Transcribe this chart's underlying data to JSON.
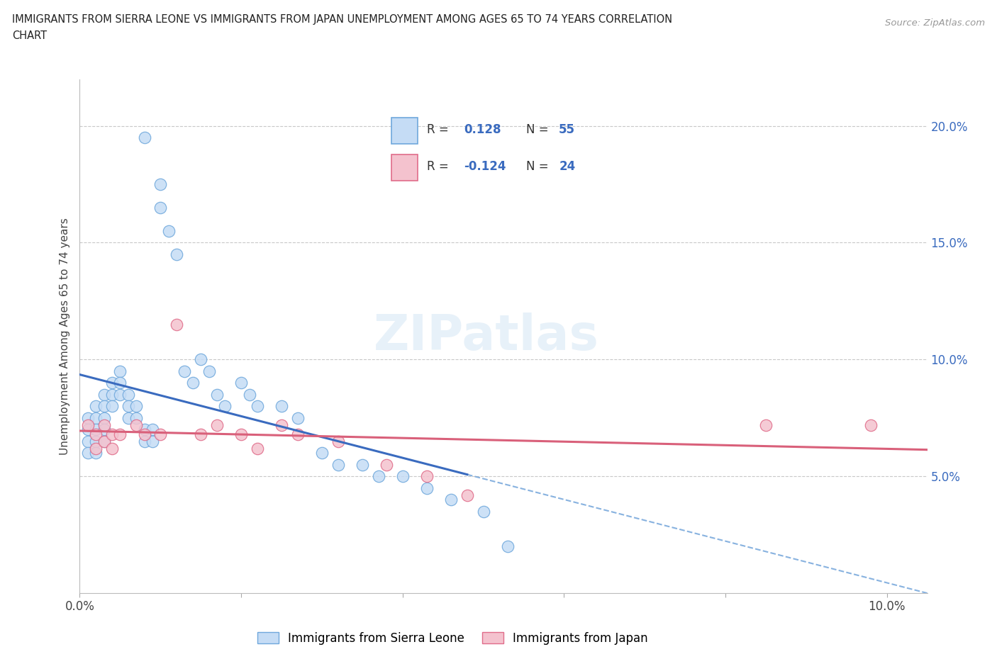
{
  "title_line1": "IMMIGRANTS FROM SIERRA LEONE VS IMMIGRANTS FROM JAPAN UNEMPLOYMENT AMONG AGES 65 TO 74 YEARS CORRELATION",
  "title_line2": "CHART",
  "source": "Source: ZipAtlas.com",
  "ylabel": "Unemployment Among Ages 65 to 74 years",
  "xlim": [
    0.0,
    0.105
  ],
  "ylim": [
    0.0,
    0.22
  ],
  "ytick_positions": [
    0.0,
    0.05,
    0.1,
    0.15,
    0.2
  ],
  "ytick_labels_right": [
    "",
    "5.0%",
    "10.0%",
    "15.0%",
    "20.0%"
  ],
  "xtick_positions": [
    0.0,
    0.02,
    0.04,
    0.06,
    0.08,
    0.1
  ],
  "xtick_labels": [
    "0.0%",
    "",
    "",
    "",
    "",
    "10.0%"
  ],
  "sl_face_color": "#c5dcf5",
  "sl_edge_color": "#6fa8dc",
  "jp_face_color": "#f4c2ce",
  "jp_edge_color": "#e06c8a",
  "sl_line_color": "#3a6bbf",
  "jp_line_color": "#d9607a",
  "dash_line_color": "#6a9fd8",
  "grid_color": "#c8c8c8",
  "bg_color": "#ffffff",
  "legend_label_1": "Immigrants from Sierra Leone",
  "legend_label_2": "Immigrants from Japan",
  "watermark": "ZIPatlas",
  "sl_x": [
    0.008,
    0.01,
    0.01,
    0.011,
    0.012,
    0.001,
    0.001,
    0.001,
    0.001,
    0.002,
    0.002,
    0.002,
    0.002,
    0.002,
    0.003,
    0.003,
    0.003,
    0.003,
    0.003,
    0.004,
    0.004,
    0.004,
    0.005,
    0.005,
    0.005,
    0.006,
    0.006,
    0.006,
    0.007,
    0.007,
    0.008,
    0.008,
    0.009,
    0.009,
    0.013,
    0.014,
    0.015,
    0.016,
    0.017,
    0.018,
    0.02,
    0.021,
    0.022,
    0.025,
    0.027,
    0.03,
    0.032,
    0.035,
    0.037,
    0.04,
    0.043,
    0.046,
    0.05,
    0.053
  ],
  "sl_y": [
    0.195,
    0.175,
    0.165,
    0.155,
    0.145,
    0.075,
    0.07,
    0.065,
    0.06,
    0.08,
    0.075,
    0.07,
    0.065,
    0.06,
    0.085,
    0.08,
    0.075,
    0.07,
    0.065,
    0.09,
    0.085,
    0.08,
    0.095,
    0.09,
    0.085,
    0.085,
    0.08,
    0.075,
    0.08,
    0.075,
    0.07,
    0.065,
    0.07,
    0.065,
    0.095,
    0.09,
    0.1,
    0.095,
    0.085,
    0.08,
    0.09,
    0.085,
    0.08,
    0.08,
    0.075,
    0.06,
    0.055,
    0.055,
    0.05,
    0.05,
    0.045,
    0.04,
    0.035,
    0.02
  ],
  "jp_x": [
    0.001,
    0.002,
    0.002,
    0.003,
    0.003,
    0.004,
    0.004,
    0.005,
    0.007,
    0.008,
    0.01,
    0.012,
    0.015,
    0.017,
    0.02,
    0.022,
    0.025,
    0.027,
    0.032,
    0.038,
    0.043,
    0.048,
    0.085,
    0.098
  ],
  "jp_y": [
    0.072,
    0.068,
    0.062,
    0.072,
    0.065,
    0.068,
    0.062,
    0.068,
    0.072,
    0.068,
    0.068,
    0.115,
    0.068,
    0.072,
    0.068,
    0.062,
    0.072,
    0.068,
    0.065,
    0.055,
    0.05,
    0.042,
    0.072,
    0.072
  ],
  "sl_trend_x_start": 0.0,
  "sl_trend_x_solid_end": 0.048,
  "sl_trend_x_end": 0.105,
  "jp_trend_x_start": 0.0,
  "jp_trend_x_end": 0.105
}
